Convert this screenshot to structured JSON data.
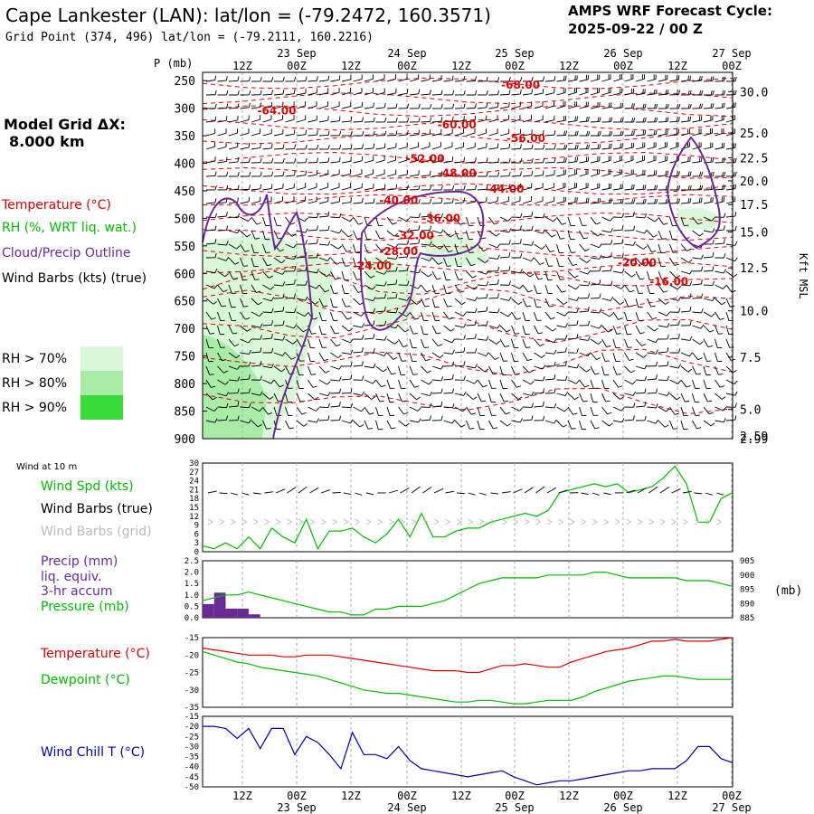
{
  "header": {
    "station": "Cape Lankester (LAN):  lat/lon = (-79.2472, 160.3571)",
    "grid_point": "Grid Point (374, 496) lat/lon = (-79.2111, 160.2216)",
    "cycle_title": "AMPS WRF Forecast Cycle:",
    "cycle_value": "2025-09-22 / 00  Z"
  },
  "sidebar": {
    "model_grid_label": "Model Grid ΔX:",
    "model_grid_value": "8.000 km",
    "temperature_legend": "Temperature (°C)",
    "rh_legend": "RH (%, WRT liq. wat.)",
    "cloud_legend": "Cloud/Precip Outline",
    "wind_legend": "Wind Barbs (kts) (true)",
    "rh70": "RH > 70%",
    "rh80": "RH > 80%",
    "rh90": "RH > 90%"
  },
  "colors": {
    "temperature": "#dd0000",
    "rh": "#00bb00",
    "cloud": "#6a2a96",
    "wind": "#000000",
    "windchill": "#0000aa",
    "grid_barbs": "#bbbbbb",
    "rh70": "#d8f8d8",
    "rh80": "#a8eca8",
    "rh90": "#38dc38",
    "precip": "#6a2a96"
  },
  "panels": {
    "wind_at_10m": "Wind at 10 m",
    "wind_spd": "Wind Spd (kts)",
    "wind_barbs_true": "Wind Barbs (true)",
    "wind_barbs_grid": "Wind Barbs (grid)",
    "precip_l1": "Precip (mm)",
    "precip_l2": "liq. equiv.",
    "precip_l3": "3-hr accum",
    "pressure": "Pressure (mb)",
    "pressure_unit": "(mb)",
    "temperature": "Temperature (°C)",
    "dewpoint": "Dewpoint (°C)",
    "windchill": "Wind Chill T (°C)"
  },
  "chart_data": {
    "type": "line",
    "time_ticks": [
      "12Z",
      "00Z",
      "12Z",
      "00Z",
      "12Z",
      "00Z",
      "12Z",
      "00Z",
      "12Z",
      "00Z"
    ],
    "date_labels": [
      "23 Sep",
      "24 Sep",
      "25 Sep",
      "26 Sep",
      "27 Sep"
    ],
    "cross_section": {
      "y_axis_title": "P (mb)",
      "right_axis_title": "Kft MSL",
      "pressure_levels": [
        250,
        300,
        350,
        400,
        450,
        500,
        550,
        600,
        650,
        700,
        750,
        800,
        850,
        900
      ],
      "height_kft": [
        30.0,
        25.0,
        22.5,
        20.0,
        17.5,
        15.0,
        12.5,
        10.0,
        7.5,
        5.0,
        2.99
      ],
      "height_labels": [
        "30.0",
        "25.0",
        "22.5",
        "20.0",
        "17.5",
        "15.0",
        "12.5",
        "10.0",
        "7.5",
        "5.0",
        "2.99"
      ],
      "bottom_overlap_label": "2.59",
      "temperature_labels": [
        {
          "t": 60,
          "p": 258,
          "text": "-68.00"
        },
        {
          "t": 14,
          "p": 305,
          "text": "-64.00"
        },
        {
          "t": 48,
          "p": 330,
          "text": "-60.00"
        },
        {
          "t": 61,
          "p": 355,
          "text": "-56.00"
        },
        {
          "t": 42,
          "p": 392,
          "text": "-52.00"
        },
        {
          "t": 48,
          "p": 418,
          "text": "-48.00"
        },
        {
          "t": 57,
          "p": 447,
          "text": "-44.00"
        },
        {
          "t": 37,
          "p": 467,
          "text": "-40.00"
        },
        {
          "t": 45,
          "p": 500,
          "text": "-36.00"
        },
        {
          "t": 40,
          "p": 531,
          "text": "-32.00"
        },
        {
          "t": 37,
          "p": 560,
          "text": "-28.00"
        },
        {
          "t": 32,
          "p": 586,
          "text": "-24.00"
        },
        {
          "t": 82,
          "p": 581,
          "text": "-20.00"
        },
        {
          "t": 88,
          "p": 615,
          "text": "-16.00"
        }
      ]
    },
    "wind_speed_kts": {
      "ylim": [
        0,
        30
      ],
      "ticks": [
        0,
        3,
        6,
        9,
        12,
        15,
        18,
        21,
        24,
        27,
        30
      ],
      "values": [
        2,
        1,
        3,
        1,
        5,
        1,
        8,
        5,
        3,
        11,
        1,
        7,
        7,
        8,
        5,
        3,
        6,
        11,
        5,
        13,
        5,
        5,
        7,
        8,
        8,
        10,
        11,
        12,
        13,
        12,
        14,
        20,
        21,
        22,
        23,
        22,
        23,
        20,
        21,
        22,
        25,
        29,
        23,
        10,
        10,
        18,
        20
      ]
    },
    "precip_mm": {
      "ylim": [
        0,
        2.5
      ],
      "ticks": [
        0.0,
        0.5,
        1.0,
        1.5,
        2.0,
        2.5
      ],
      "values": [
        0.6,
        1.1,
        0.4,
        0.4,
        0.15,
        0,
        0,
        0,
        0,
        0,
        0,
        0,
        0,
        0,
        0,
        0,
        0,
        0,
        0,
        0,
        0,
        0,
        0,
        0,
        0,
        0,
        0,
        0,
        0,
        0,
        0,
        0,
        0,
        0,
        0,
        0,
        0,
        0,
        0,
        0,
        0,
        0,
        0,
        0,
        0,
        0,
        0
      ]
    },
    "pressure_mb": {
      "ylim": [
        885,
        905
      ],
      "ticks": [
        885,
        890,
        895,
        900,
        905
      ],
      "values": [
        891,
        892,
        893,
        893,
        894,
        893,
        892,
        891,
        890,
        889,
        888,
        887,
        887,
        886,
        886,
        888,
        888,
        889,
        889,
        889,
        890,
        891,
        893,
        895,
        897,
        898,
        899,
        899,
        899,
        899,
        900,
        900,
        900,
        900,
        901,
        901,
        900,
        899,
        899,
        899,
        899,
        899,
        898,
        898,
        898,
        897,
        896
      ]
    },
    "temperature_c": {
      "ylim": [
        -35,
        -15
      ],
      "ticks": [
        -15,
        -20,
        -25,
        -30,
        -35
      ],
      "temperature": [
        -18,
        -18.5,
        -19,
        -19.5,
        -20,
        -20,
        -20,
        -20.5,
        -20.5,
        -20,
        -20,
        -20,
        -20.5,
        -21,
        -21.5,
        -22,
        -22.5,
        -23,
        -23.5,
        -24,
        -24.5,
        -24.5,
        -24.5,
        -25,
        -25,
        -24,
        -23,
        -23,
        -22.5,
        -23,
        -23.5,
        -23.5,
        -22,
        -21,
        -20,
        -19,
        -18.5,
        -18,
        -17,
        -16,
        -16,
        -15.5,
        -16,
        -16,
        -16,
        -15.5,
        -15
      ],
      "dewpoint": [
        -19,
        -20,
        -21,
        -22,
        -22.5,
        -23.5,
        -24,
        -24.5,
        -25,
        -25.5,
        -26,
        -27,
        -28,
        -29,
        -30,
        -30.5,
        -31,
        -31,
        -31.5,
        -32,
        -32.5,
        -33,
        -33.5,
        -33.5,
        -33,
        -33,
        -33.5,
        -34,
        -34,
        -33.5,
        -33,
        -33,
        -33,
        -32,
        -30.5,
        -29.5,
        -28.5,
        -27.5,
        -27,
        -26.5,
        -26,
        -26,
        -26.5,
        -27,
        -27,
        -27,
        -27
      ]
    },
    "wind_chill_c": {
      "ylim": [
        -50,
        -15
      ],
      "ticks": [
        -15,
        -20,
        -25,
        -30,
        -35,
        -40,
        -45,
        -50
      ],
      "values": [
        -20,
        -20,
        -21,
        -26,
        -21,
        -31,
        -21,
        -21,
        -34,
        -25,
        -28,
        -34,
        -41,
        -23,
        -34,
        -34,
        -36,
        -30,
        -37,
        -41,
        -42,
        -43,
        -44,
        -45,
        -44,
        -43,
        -42,
        -45,
        -47,
        -49,
        -48,
        -47,
        -47,
        -46,
        -45,
        -44,
        -43,
        -42,
        -42,
        -41,
        -41,
        -41,
        -37,
        -30,
        -30,
        -36,
        -38
      ]
    }
  }
}
